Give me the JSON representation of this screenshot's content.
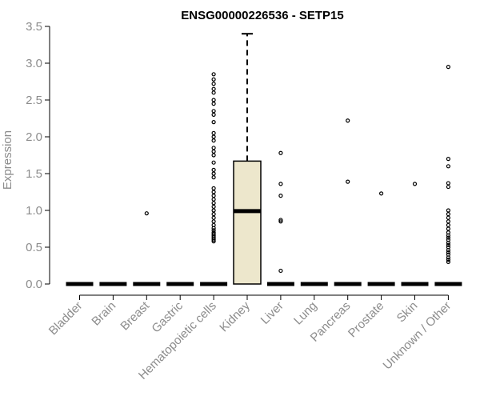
{
  "chart_data": {
    "type": "box",
    "title": "ENSG00000226536 - SETP15",
    "xlabel": "",
    "ylabel": "Expression",
    "ylim": [
      0,
      3.5
    ],
    "yticks": [
      "0.0",
      "0.5",
      "1.0",
      "1.5",
      "2.0",
      "2.5",
      "3.0",
      "3.5"
    ],
    "grid": false,
    "legend": "none",
    "colors": {
      "box_fill": "#ede7cc",
      "stroke": "#000000",
      "axis_text": "#8c8c8c"
    },
    "categories": [
      "Bladder",
      "Brain",
      "Breast",
      "Gastric",
      "Hematopoietic cells",
      "Kidney",
      "Liver",
      "Lung",
      "Pancreas",
      "Prostate",
      "Skin",
      "Unknown / Other"
    ],
    "boxes": [
      {
        "category": "Bladder",
        "q1": 0,
        "median": 0,
        "q3": 0,
        "whisker_low": 0,
        "whisker_high": 0,
        "outliers": []
      },
      {
        "category": "Brain",
        "q1": 0,
        "median": 0,
        "q3": 0,
        "whisker_low": 0,
        "whisker_high": 0,
        "outliers": []
      },
      {
        "category": "Breast",
        "q1": 0,
        "median": 0,
        "q3": 0,
        "whisker_low": 0,
        "whisker_high": 0,
        "outliers": [
          0.96
        ]
      },
      {
        "category": "Gastric",
        "q1": 0,
        "median": 0,
        "q3": 0,
        "whisker_low": 0,
        "whisker_high": 0,
        "outliers": []
      },
      {
        "category": "Hematopoietic cells",
        "q1": 0,
        "median": 0,
        "q3": 0,
        "whisker_low": 0,
        "whisker_high": 0,
        "outliers": [
          0.58,
          0.6,
          0.62,
          0.64,
          0.66,
          0.68,
          0.7,
          0.73,
          0.76,
          0.8,
          0.85,
          0.9,
          0.95,
          1.0,
          1.05,
          1.1,
          1.15,
          1.2,
          1.25,
          1.3,
          1.45,
          1.5,
          1.55,
          1.65,
          1.75,
          1.8,
          1.85,
          1.95,
          2.0,
          2.05,
          2.2,
          2.3,
          2.35,
          2.45,
          2.5,
          2.6,
          2.65,
          2.72,
          2.78,
          2.85
        ]
      },
      {
        "category": "Kidney",
        "q1": 0,
        "median": 0.99,
        "q3": 1.67,
        "whisker_low": 0,
        "whisker_high": 3.4,
        "outliers": []
      },
      {
        "category": "Liver",
        "q1": 0,
        "median": 0,
        "q3": 0,
        "whisker_low": 0,
        "whisker_high": 0,
        "outliers": [
          0.18,
          0.85,
          0.87,
          1.2,
          1.36,
          1.78
        ]
      },
      {
        "category": "Lung",
        "q1": 0,
        "median": 0,
        "q3": 0,
        "whisker_low": 0,
        "whisker_high": 0,
        "outliers": []
      },
      {
        "category": "Pancreas",
        "q1": 0,
        "median": 0,
        "q3": 0,
        "whisker_low": 0,
        "whisker_high": 0,
        "outliers": [
          1.39,
          2.22
        ]
      },
      {
        "category": "Prostate",
        "q1": 0,
        "median": 0,
        "q3": 0,
        "whisker_low": 0,
        "whisker_high": 0,
        "outliers": [
          1.23
        ]
      },
      {
        "category": "Skin",
        "q1": 0,
        "median": 0,
        "q3": 0,
        "whisker_low": 0,
        "whisker_high": 0,
        "outliers": [
          1.36
        ]
      },
      {
        "category": "Unknown / Other",
        "q1": 0,
        "median": 0,
        "q3": 0,
        "whisker_low": 0,
        "whisker_high": 0,
        "outliers": [
          0.3,
          0.33,
          0.36,
          0.4,
          0.43,
          0.46,
          0.5,
          0.53,
          0.56,
          0.6,
          0.63,
          0.66,
          0.7,
          0.75,
          0.8,
          0.85,
          0.9,
          0.95,
          1.0,
          1.32,
          1.37,
          1.6,
          1.7,
          2.95
        ]
      }
    ]
  }
}
